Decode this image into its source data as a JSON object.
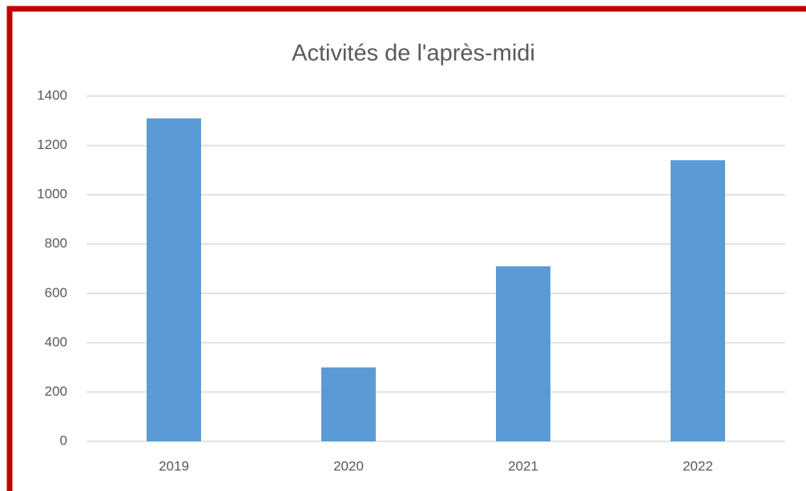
{
  "chart_data": {
    "type": "bar",
    "title": "Activités de l'après-midi",
    "categories": [
      "2019",
      "2020",
      "2021",
      "2022"
    ],
    "values": [
      1310,
      300,
      710,
      1140
    ],
    "color": "#5b9bd5",
    "ylim": [
      0,
      1400
    ],
    "yticks": [
      0,
      200,
      400,
      600,
      800,
      1000,
      1200,
      1400
    ],
    "grid": true
  }
}
